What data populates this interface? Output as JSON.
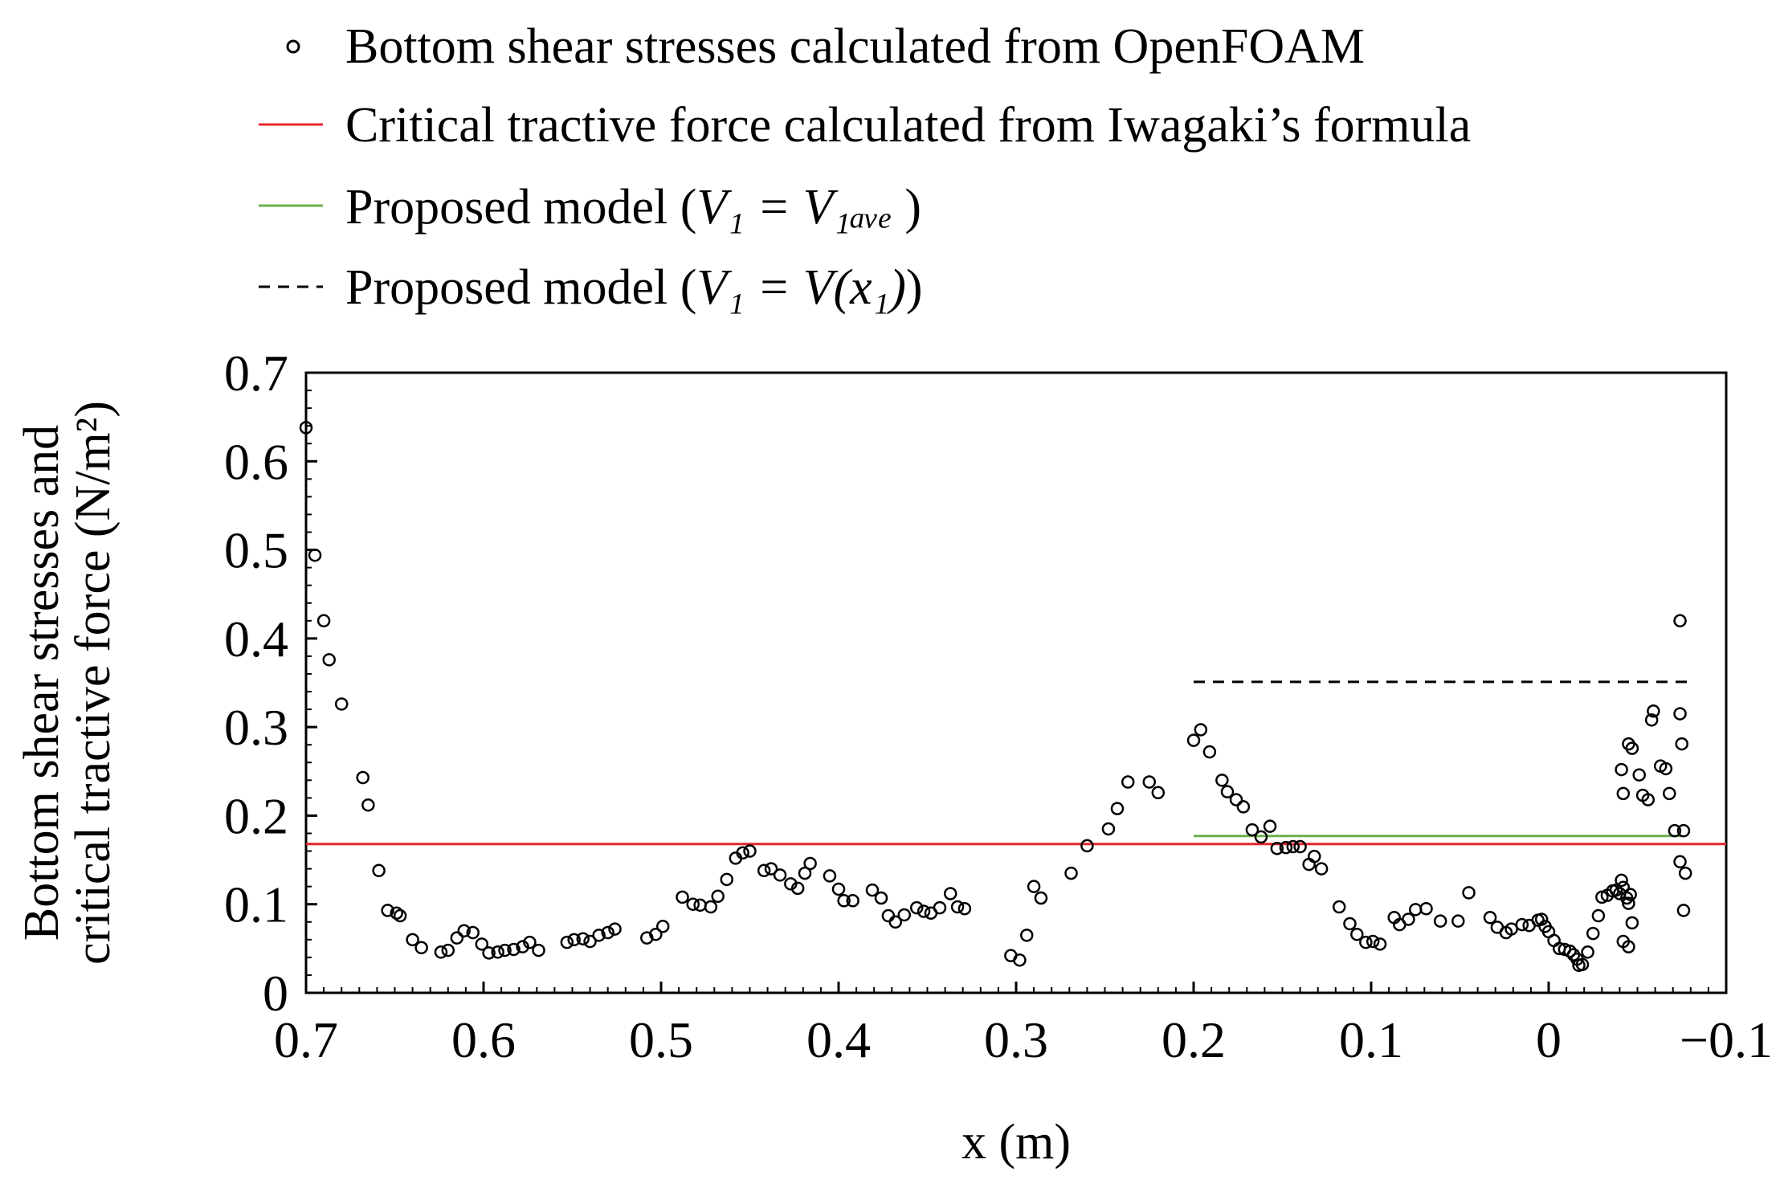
{
  "chart_data": {
    "type": "scatter",
    "title": "",
    "xlabel": "x (m)",
    "ylabel_line1": "Bottom shear stresses and",
    "ylabel_line2": "critical tractive force (N/m²)",
    "xlim": [
      0.7,
      -0.1
    ],
    "ylim": [
      0,
      0.7
    ],
    "x_ticks": [
      0.7,
      0.6,
      0.5,
      0.4,
      0.3,
      0.2,
      0.1,
      0,
      -0.1
    ],
    "x_tick_labels": [
      "0.7",
      "0.6",
      "0.5",
      "0.4",
      "0.3",
      "0.2",
      "0.1",
      "0",
      "−0.1"
    ],
    "y_ticks": [
      0,
      0.1,
      0.2,
      0.3,
      0.4,
      0.5,
      0.6,
      0.7
    ],
    "y_tick_labels": [
      "0",
      "0.1",
      "0.2",
      "0.3",
      "0.4",
      "0.5",
      "0.6",
      "0.7"
    ],
    "legend_position": "top",
    "legend": [
      {
        "key": "scatter",
        "marker": "open-circle",
        "label": "Bottom shear stresses calculated from OpenFOAM"
      },
      {
        "key": "iwagaki",
        "marker": "solid-line",
        "color": "#e8262b",
        "label": "Critical tractive force calculated from Iwagaki’s formula"
      },
      {
        "key": "v1ave",
        "marker": "solid-line",
        "color": "#6ab04c",
        "label_prefix": "Proposed model (",
        "label_math": "V₁ = V₁ₐᵥₑ",
        "label_suffix": " )"
      },
      {
        "key": "vx1",
        "marker": "dashed-line",
        "color": "#000000",
        "label_prefix": "Proposed model (",
        "label_math": "V₁ = V(x₁)",
        "label_suffix": ")"
      }
    ],
    "lines": [
      {
        "name": "Critical tractive force calculated from Iwagaki’s formula",
        "color": "#e8262b",
        "style": "solid",
        "x": [
          0.7,
          -0.1
        ],
        "y": [
          0.168,
          0.168
        ]
      },
      {
        "name": "Proposed model (V1 = V1ave)",
        "color": "#6ab04c",
        "style": "solid",
        "x": [
          0.2,
          -0.075
        ],
        "y": [
          0.177,
          0.177
        ]
      },
      {
        "name": "Proposed model (V1 = V(x1))",
        "color": "#000000",
        "style": "dashed",
        "x": [
          0.2,
          -0.082
        ],
        "y": [
          0.351,
          0.351
        ]
      }
    ],
    "series": [
      {
        "name": "Bottom shear stresses calculated from OpenFOAM",
        "marker": "open-circle",
        "points": [
          [
            0.7,
            0.638
          ],
          [
            0.695,
            0.494
          ],
          [
            0.69,
            0.42
          ],
          [
            0.687,
            0.376
          ],
          [
            0.68,
            0.326
          ],
          [
            0.668,
            0.243
          ],
          [
            0.665,
            0.212
          ],
          [
            0.659,
            0.138
          ],
          [
            0.654,
            0.093
          ],
          [
            0.649,
            0.09
          ],
          [
            0.647,
            0.087
          ],
          [
            0.64,
            0.06
          ],
          [
            0.635,
            0.051
          ],
          [
            0.624,
            0.046
          ],
          [
            0.62,
            0.048
          ],
          [
            0.615,
            0.062
          ],
          [
            0.611,
            0.07
          ],
          [
            0.606,
            0.068
          ],
          [
            0.601,
            0.055
          ],
          [
            0.597,
            0.045
          ],
          [
            0.592,
            0.046
          ],
          [
            0.588,
            0.048
          ],
          [
            0.583,
            0.049
          ],
          [
            0.578,
            0.052
          ],
          [
            0.574,
            0.057
          ],
          [
            0.569,
            0.048
          ],
          [
            0.553,
            0.057
          ],
          [
            0.549,
            0.06
          ],
          [
            0.544,
            0.061
          ],
          [
            0.54,
            0.058
          ],
          [
            0.535,
            0.065
          ],
          [
            0.53,
            0.068
          ],
          [
            0.526,
            0.072
          ],
          [
            0.508,
            0.062
          ],
          [
            0.503,
            0.066
          ],
          [
            0.499,
            0.075
          ],
          [
            0.488,
            0.108
          ],
          [
            0.482,
            0.1
          ],
          [
            0.478,
            0.099
          ],
          [
            0.472,
            0.097
          ],
          [
            0.468,
            0.109
          ],
          [
            0.463,
            0.128
          ],
          [
            0.458,
            0.152
          ],
          [
            0.454,
            0.158
          ],
          [
            0.45,
            0.16
          ],
          [
            0.442,
            0.138
          ],
          [
            0.438,
            0.14
          ],
          [
            0.433,
            0.133
          ],
          [
            0.427,
            0.123
          ],
          [
            0.423,
            0.118
          ],
          [
            0.419,
            0.135
          ],
          [
            0.416,
            0.146
          ],
          [
            0.405,
            0.132
          ],
          [
            0.4,
            0.117
          ],
          [
            0.397,
            0.104
          ],
          [
            0.392,
            0.104
          ],
          [
            0.381,
            0.116
          ],
          [
            0.376,
            0.107
          ],
          [
            0.372,
            0.087
          ],
          [
            0.368,
            0.08
          ],
          [
            0.363,
            0.088
          ],
          [
            0.356,
            0.096
          ],
          [
            0.352,
            0.092
          ],
          [
            0.348,
            0.09
          ],
          [
            0.343,
            0.096
          ],
          [
            0.337,
            0.112
          ],
          [
            0.333,
            0.097
          ],
          [
            0.329,
            0.095
          ],
          [
            0.303,
            0.042
          ],
          [
            0.298,
            0.037
          ],
          [
            0.294,
            0.065
          ],
          [
            0.29,
            0.12
          ],
          [
            0.286,
            0.107
          ],
          [
            0.269,
            0.135
          ],
          [
            0.26,
            0.166
          ],
          [
            0.248,
            0.185
          ],
          [
            0.243,
            0.208
          ],
          [
            0.237,
            0.238
          ],
          [
            0.225,
            0.238
          ],
          [
            0.22,
            0.226
          ],
          [
            0.2,
            0.285
          ],
          [
            0.196,
            0.297
          ],
          [
            0.191,
            0.272
          ],
          [
            0.184,
            0.24
          ],
          [
            0.181,
            0.227
          ],
          [
            0.176,
            0.218
          ],
          [
            0.172,
            0.21
          ],
          [
            0.167,
            0.184
          ],
          [
            0.162,
            0.176
          ],
          [
            0.157,
            0.188
          ],
          [
            0.153,
            0.163
          ],
          [
            0.148,
            0.164
          ],
          [
            0.144,
            0.165
          ],
          [
            0.14,
            0.165
          ],
          [
            0.135,
            0.145
          ],
          [
            0.132,
            0.154
          ],
          [
            0.128,
            0.14
          ],
          [
            0.118,
            0.097
          ],
          [
            0.112,
            0.078
          ],
          [
            0.108,
            0.066
          ],
          [
            0.103,
            0.057
          ],
          [
            0.099,
            0.058
          ],
          [
            0.095,
            0.055
          ],
          [
            0.087,
            0.085
          ],
          [
            0.084,
            0.077
          ],
          [
            0.079,
            0.083
          ],
          [
            0.075,
            0.094
          ],
          [
            0.069,
            0.095
          ],
          [
            0.061,
            0.081
          ],
          [
            0.051,
            0.081
          ],
          [
            0.045,
            0.113
          ],
          [
            0.033,
            0.085
          ],
          [
            0.029,
            0.074
          ],
          [
            0.024,
            0.068
          ],
          [
            0.021,
            0.072
          ],
          [
            0.015,
            0.077
          ],
          [
            0.011,
            0.076
          ],
          [
            0.006,
            0.082
          ],
          [
            0.004,
            0.083
          ],
          [
            0.002,
            0.075
          ],
          [
            0.0,
            0.069
          ],
          [
            -0.003,
            0.059
          ],
          [
            -0.006,
            0.05
          ],
          [
            -0.009,
            0.049
          ],
          [
            -0.012,
            0.047
          ],
          [
            -0.014,
            0.043
          ],
          [
            -0.016,
            0.038
          ],
          [
            -0.017,
            0.031
          ],
          [
            -0.019,
            0.032
          ],
          [
            -0.022,
            0.046
          ],
          [
            -0.025,
            0.067
          ],
          [
            -0.028,
            0.087
          ],
          [
            -0.03,
            0.108
          ],
          [
            -0.033,
            0.11
          ],
          [
            -0.036,
            0.115
          ],
          [
            -0.038,
            0.116
          ],
          [
            -0.04,
            0.112
          ],
          [
            -0.041,
            0.127
          ],
          [
            -0.042,
            0.119
          ],
          [
            -0.044,
            0.107
          ],
          [
            -0.045,
            0.101
          ],
          [
            -0.046,
            0.111
          ],
          [
            -0.047,
            0.079
          ],
          [
            -0.042,
            0.058
          ],
          [
            -0.045,
            0.052
          ],
          [
            -0.041,
            0.252
          ],
          [
            -0.042,
            0.225
          ],
          [
            -0.045,
            0.281
          ],
          [
            -0.047,
            0.276
          ],
          [
            -0.051,
            0.246
          ],
          [
            -0.053,
            0.223
          ],
          [
            -0.056,
            0.218
          ],
          [
            -0.058,
            0.308
          ],
          [
            -0.059,
            0.318
          ],
          [
            -0.063,
            0.256
          ],
          [
            -0.066,
            0.253
          ],
          [
            -0.068,
            0.225
          ],
          [
            -0.071,
            0.183
          ],
          [
            -0.074,
            0.315
          ],
          [
            -0.075,
            0.281
          ],
          [
            -0.074,
            0.148
          ],
          [
            -0.076,
            0.183
          ],
          [
            -0.077,
            0.135
          ],
          [
            -0.076,
            0.093
          ],
          [
            -0.074,
            0.42
          ]
        ]
      }
    ]
  }
}
